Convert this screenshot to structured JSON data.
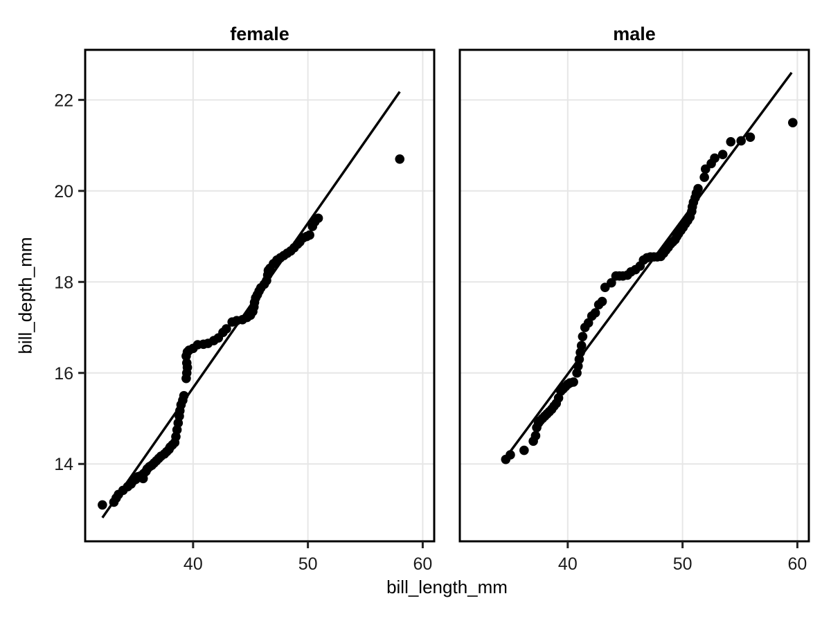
{
  "figure": {
    "x_axis_title": "bill_length_mm",
    "y_axis_title": "bill_depth_mm"
  },
  "style": {
    "background": "#ffffff",
    "point_color": "#000000",
    "trend_line_color": "#000000",
    "grid_color": "#e6e6e6",
    "panel_border_color": "#000000",
    "tick_color": "#222222",
    "tick_label_color": "#1a1a1a",
    "title_color": "#000000"
  },
  "chart_data": {
    "type": "scatter",
    "title": "",
    "xlabel": "bill_length_mm",
    "ylabel": "bill_depth_mm",
    "xlim": [
      30.6,
      61.0
    ],
    "ylim": [
      12.3,
      23.1
    ],
    "x_ticks": [
      40,
      50,
      60
    ],
    "y_ticks": [
      14,
      16,
      18,
      20,
      22
    ],
    "grid": true,
    "legend": "none",
    "facets": [
      {
        "label": "female",
        "trend_line": {
          "x1": 32.1,
          "y1": 12.82,
          "x2": 58.0,
          "y2": 22.18
        },
        "points": [
          [
            32.1,
            13.1
          ],
          [
            33.1,
            13.16
          ],
          [
            33.3,
            13.25
          ],
          [
            33.5,
            13.33
          ],
          [
            33.9,
            13.42
          ],
          [
            34.3,
            13.5
          ],
          [
            34.6,
            13.56
          ],
          [
            34.75,
            13.62
          ],
          [
            35.0,
            13.66
          ],
          [
            35.2,
            13.72
          ],
          [
            35.45,
            13.74
          ],
          [
            35.65,
            13.68
          ],
          [
            35.7,
            13.79
          ],
          [
            35.9,
            13.84
          ],
          [
            36.0,
            13.89
          ],
          [
            36.2,
            13.94
          ],
          [
            36.4,
            13.97
          ],
          [
            36.6,
            14.02
          ],
          [
            36.8,
            14.07
          ],
          [
            37.0,
            14.12
          ],
          [
            37.2,
            14.17
          ],
          [
            37.5,
            14.22
          ],
          [
            37.7,
            14.27
          ],
          [
            37.9,
            14.32
          ],
          [
            38.0,
            14.37
          ],
          [
            38.2,
            14.42
          ],
          [
            38.4,
            14.47
          ],
          [
            38.5,
            14.6
          ],
          [
            38.6,
            14.75
          ],
          [
            38.7,
            14.9
          ],
          [
            38.8,
            15.05
          ],
          [
            38.85,
            15.17
          ],
          [
            38.95,
            15.3
          ],
          [
            39.1,
            15.4
          ],
          [
            39.2,
            15.5
          ],
          [
            39.4,
            15.88
          ],
          [
            39.45,
            16.0
          ],
          [
            39.5,
            16.12
          ],
          [
            39.45,
            16.22
          ],
          [
            39.4,
            16.37
          ],
          [
            39.5,
            16.46
          ],
          [
            39.65,
            16.5
          ],
          [
            40.0,
            16.54
          ],
          [
            40.4,
            16.62
          ],
          [
            40.9,
            16.63
          ],
          [
            41.3,
            16.65
          ],
          [
            41.8,
            16.71
          ],
          [
            42.2,
            16.77
          ],
          [
            42.6,
            16.89
          ],
          [
            42.9,
            16.97
          ],
          [
            43.4,
            17.12
          ],
          [
            43.8,
            17.15
          ],
          [
            44.3,
            17.17
          ],
          [
            44.7,
            17.22
          ],
          [
            45.0,
            17.27
          ],
          [
            45.2,
            17.35
          ],
          [
            45.3,
            17.45
          ],
          [
            45.35,
            17.55
          ],
          [
            45.45,
            17.65
          ],
          [
            45.6,
            17.72
          ],
          [
            45.75,
            17.8
          ],
          [
            45.9,
            17.87
          ],
          [
            46.2,
            17.95
          ],
          [
            46.4,
            18.03
          ],
          [
            46.5,
            18.15
          ],
          [
            46.55,
            18.25
          ],
          [
            46.7,
            18.3
          ],
          [
            47.0,
            18.4
          ],
          [
            47.3,
            18.48
          ],
          [
            47.6,
            18.53
          ],
          [
            47.9,
            18.58
          ],
          [
            48.2,
            18.63
          ],
          [
            48.5,
            18.68
          ],
          [
            48.8,
            18.75
          ],
          [
            49.1,
            18.83
          ],
          [
            49.3,
            18.88
          ],
          [
            49.6,
            18.97
          ],
          [
            49.9,
            19.0
          ],
          [
            50.15,
            19.03
          ],
          [
            50.4,
            19.22
          ],
          [
            50.6,
            19.32
          ],
          [
            50.9,
            19.4
          ],
          [
            58.0,
            20.7
          ]
        ]
      },
      {
        "label": "male",
        "trend_line": {
          "x1": 34.6,
          "y1": 14.14,
          "x2": 59.5,
          "y2": 22.6
        },
        "points": [
          [
            34.6,
            14.1
          ],
          [
            35.0,
            14.2
          ],
          [
            36.2,
            14.3
          ],
          [
            37.0,
            14.5
          ],
          [
            37.2,
            14.62
          ],
          [
            37.3,
            14.8
          ],
          [
            37.45,
            14.9
          ],
          [
            37.6,
            14.95
          ],
          [
            37.8,
            15.0
          ],
          [
            38.0,
            15.05
          ],
          [
            38.2,
            15.1
          ],
          [
            38.4,
            15.15
          ],
          [
            38.6,
            15.2
          ],
          [
            38.8,
            15.27
          ],
          [
            39.0,
            15.33
          ],
          [
            39.2,
            15.45
          ],
          [
            39.4,
            15.6
          ],
          [
            39.6,
            15.65
          ],
          [
            39.8,
            15.7
          ],
          [
            40.0,
            15.75
          ],
          [
            40.2,
            15.78
          ],
          [
            40.5,
            15.8
          ],
          [
            40.8,
            16.0
          ],
          [
            40.9,
            16.15
          ],
          [
            41.0,
            16.3
          ],
          [
            41.1,
            16.45
          ],
          [
            41.2,
            16.6
          ],
          [
            41.3,
            16.8
          ],
          [
            41.5,
            17.0
          ],
          [
            41.8,
            17.1
          ],
          [
            42.1,
            17.25
          ],
          [
            42.4,
            17.32
          ],
          [
            42.7,
            17.5
          ],
          [
            43.0,
            17.57
          ],
          [
            43.25,
            17.88
          ],
          [
            43.8,
            17.98
          ],
          [
            44.2,
            18.13
          ],
          [
            44.5,
            18.13
          ],
          [
            44.8,
            18.13
          ],
          [
            45.2,
            18.15
          ],
          [
            45.5,
            18.22
          ],
          [
            45.9,
            18.27
          ],
          [
            46.3,
            18.35
          ],
          [
            46.6,
            18.48
          ],
          [
            46.9,
            18.53
          ],
          [
            47.2,
            18.55
          ],
          [
            47.5,
            18.55
          ],
          [
            47.8,
            18.55
          ],
          [
            48.1,
            18.56
          ],
          [
            48.35,
            18.63
          ],
          [
            48.55,
            18.7
          ],
          [
            48.75,
            18.76
          ],
          [
            48.95,
            18.83
          ],
          [
            49.15,
            18.88
          ],
          [
            49.35,
            18.93
          ],
          [
            49.5,
            19.0
          ],
          [
            49.65,
            19.06
          ],
          [
            49.85,
            19.13
          ],
          [
            50.05,
            19.2
          ],
          [
            50.25,
            19.28
          ],
          [
            50.45,
            19.35
          ],
          [
            50.65,
            19.43
          ],
          [
            50.8,
            19.55
          ],
          [
            50.85,
            19.65
          ],
          [
            50.95,
            19.75
          ],
          [
            51.1,
            19.85
          ],
          [
            51.2,
            19.95
          ],
          [
            51.35,
            20.05
          ],
          [
            51.9,
            20.3
          ],
          [
            52.0,
            20.48
          ],
          [
            52.5,
            20.6
          ],
          [
            52.8,
            20.72
          ],
          [
            53.5,
            20.8
          ],
          [
            54.2,
            21.08
          ],
          [
            55.1,
            21.1
          ],
          [
            55.9,
            21.18
          ],
          [
            59.6,
            21.5
          ]
        ]
      }
    ]
  }
}
